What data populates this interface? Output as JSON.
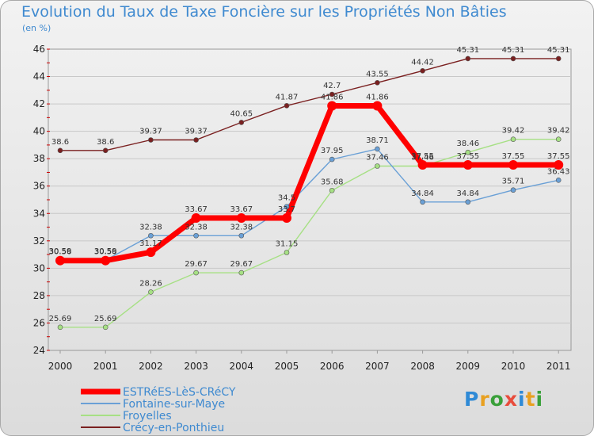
{
  "chart_data": {
    "type": "line",
    "title": "Evolution du Taux de Taxe Foncière sur les Propriétés Non Bâties",
    "ylabel": "(en %)",
    "xlabel": "",
    "ylim": [
      24,
      46
    ],
    "yticks": [
      "24",
      "26",
      "28",
      "30",
      "32",
      "34",
      "36",
      "38",
      "40",
      "42",
      "44",
      "46"
    ],
    "categories": [
      "2000",
      "2001",
      "2002",
      "2003",
      "2004",
      "2005",
      "2006",
      "2007",
      "2008",
      "2009",
      "2010",
      "2011"
    ],
    "grid": true,
    "legend": "bottom-left",
    "series": [
      {
        "name": "Crécy-en-Ponthieu",
        "color": "#7a2020",
        "values": [
          38.6,
          38.6,
          39.37,
          39.37,
          40.65,
          41.87,
          42.7,
          43.55,
          44.42,
          45.31,
          45.31,
          45.31
        ],
        "labels": [
          "38.6",
          "38.6",
          "39.37",
          "39.37",
          "40.65",
          "41.87",
          "42.7",
          "43.55",
          "44.42",
          "45.31",
          "45.31",
          "45.31"
        ]
      },
      {
        "name": "Froyelles",
        "color": "#a6e084",
        "values": [
          25.69,
          25.69,
          28.26,
          29.67,
          29.67,
          31.15,
          35.68,
          37.46,
          37.46,
          38.46,
          39.42,
          39.42
        ],
        "labels": [
          "25.69",
          "25.69",
          "28.26",
          "29.67",
          "29.67",
          "31.15",
          "35.68",
          "37.46",
          "37.46",
          "38.46",
          "39.42",
          "39.42"
        ]
      },
      {
        "name": "Fontaine-sur-Maye",
        "color": "#6aa0d6",
        "values": [
          30.59,
          30.59,
          32.38,
          32.38,
          32.38,
          34.5,
          37.95,
          38.71,
          34.84,
          34.84,
          35.71,
          36.43
        ],
        "labels": [
          "30.59",
          "30.59",
          "32.38",
          "32.38",
          "32.38",
          "34.5",
          "37.95",
          "38.71",
          "34.84",
          "34.84",
          "35.71",
          "36.43"
        ]
      },
      {
        "name": "ESTRéES-LèS-CRéCY",
        "color": "#ff0000",
        "values": [
          30.56,
          30.56,
          31.17,
          33.67,
          33.67,
          33.67,
          41.86,
          41.86,
          37.55,
          37.55,
          37.55,
          37.55
        ],
        "labels": [
          "30.56",
          "30.56",
          "31.17",
          "33.67",
          "33.67",
          "33.7",
          "41.86",
          "41.86",
          "37.55",
          "37.55",
          "37.55",
          "37.55"
        ]
      }
    ],
    "legend_entries": [
      "ESTRéES-LèS-CRéCY",
      "Fontaine-sur-Maye",
      "Froyelles",
      "Crécy-en-Ponthieu"
    ]
  },
  "logo": {
    "letters": [
      "P",
      "r",
      "o",
      "x",
      "i",
      "t",
      "i"
    ],
    "colors": [
      "#2f8ad6",
      "#e8a020",
      "#3aa03a",
      "#e84c3c",
      "#2f8ad6",
      "#e8a020",
      "#3aa03a"
    ]
  }
}
